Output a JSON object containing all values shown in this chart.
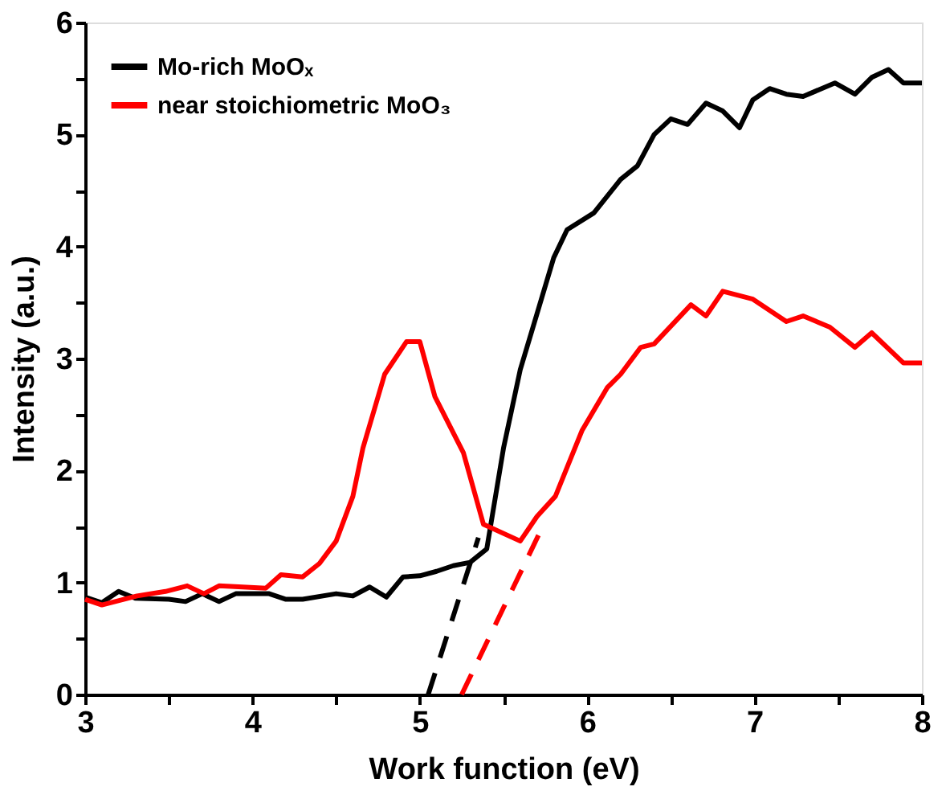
{
  "chart_data": {
    "type": "line",
    "xlabel": "Work function (eV)",
    "ylabel": "Intensity (a.u.)",
    "xlim": [
      3,
      8
    ],
    "xticks": [
      3,
      {
        "value": 3.5,
        "label": null
      },
      4,
      {
        "value": 4.5,
        "label": null
      },
      5,
      {
        "value": 5.5,
        "label": null
      },
      6,
      {
        "value": 6.5,
        "label": null
      },
      7,
      {
        "value": 7.5,
        "label": null
      },
      8
    ],
    "ylim": [
      0,
      6
    ],
    "yticks": [
      0,
      {
        "value": 0.5,
        "label": null
      },
      1,
      {
        "value": 1.5,
        "label": null
      },
      2,
      {
        "value": 2.5,
        "label": null
      },
      3,
      {
        "value": 3.5,
        "label": null
      },
      4,
      {
        "value": 4.5,
        "label": null
      },
      5,
      {
        "value": 5.5,
        "label": null
      },
      6
    ],
    "grid": false,
    "legend": "top left",
    "line_style": "solid",
    "series": [
      {
        "name": "Mo-rich MoOₓ",
        "color": "#000000",
        "x": [
          3.0,
          3.1,
          3.2,
          3.3,
          3.5,
          3.6,
          3.7,
          3.8,
          3.9,
          4.1,
          4.2,
          4.3,
          4.5,
          4.6,
          4.7,
          4.8,
          4.9,
          5.0,
          5.1,
          5.2,
          5.3,
          5.4,
          5.5,
          5.6,
          5.7,
          5.8,
          5.88,
          6.04,
          6.2,
          6.3,
          6.4,
          6.5,
          6.6,
          6.71,
          6.81,
          6.91,
          6.99,
          7.09,
          7.19,
          7.29,
          7.48,
          7.6,
          7.7,
          7.8,
          7.89,
          8.0
        ],
        "values": [
          0.87,
          0.82,
          0.92,
          0.86,
          0.85,
          0.83,
          0.9,
          0.83,
          0.9,
          0.9,
          0.85,
          0.85,
          0.9,
          0.88,
          0.96,
          0.87,
          1.05,
          1.06,
          1.1,
          1.15,
          1.18,
          1.3,
          2.2,
          2.9,
          3.4,
          3.9,
          4.15,
          4.3,
          4.6,
          4.72,
          5.0,
          5.14,
          5.09,
          5.28,
          5.21,
          5.06,
          5.31,
          5.41,
          5.36,
          5.34,
          5.46,
          5.36,
          5.51,
          5.58,
          5.46,
          5.46
        ]
      },
      {
        "name": "near stoichiometric MoO₃",
        "color": "#ff0000",
        "x": [
          3.0,
          3.1,
          3.31,
          3.48,
          3.61,
          3.71,
          3.8,
          4.08,
          4.17,
          4.3,
          4.4,
          4.5,
          4.6,
          4.66,
          4.79,
          4.92,
          5.0,
          5.09,
          5.26,
          5.38,
          5.6,
          5.7,
          5.81,
          5.97,
          6.12,
          6.2,
          6.32,
          6.4,
          6.62,
          6.71,
          6.81,
          6.99,
          7.19,
          7.29,
          7.45,
          7.6,
          7.7,
          7.89,
          8.0
        ],
        "values": [
          0.85,
          0.8,
          0.88,
          0.92,
          0.97,
          0.9,
          0.97,
          0.95,
          1.07,
          1.05,
          1.17,
          1.37,
          1.77,
          2.2,
          2.86,
          3.15,
          3.15,
          2.66,
          2.16,
          1.52,
          1.37,
          1.59,
          1.77,
          2.36,
          2.74,
          2.86,
          3.1,
          3.13,
          3.48,
          3.38,
          3.6,
          3.53,
          3.33,
          3.38,
          3.28,
          3.1,
          3.23,
          2.96,
          2.96
        ]
      },
      {
        "type": "line",
        "line_style": "dashed",
        "color": "#000000",
        "x": [
          5.05,
          5.35
        ],
        "values": [
          0,
          1.4
        ]
      },
      {
        "type": "line",
        "line_style": "dashed",
        "color": "#ff0000",
        "x": [
          5.25,
          5.75
        ],
        "values": [
          0,
          1.55
        ]
      }
    ]
  }
}
